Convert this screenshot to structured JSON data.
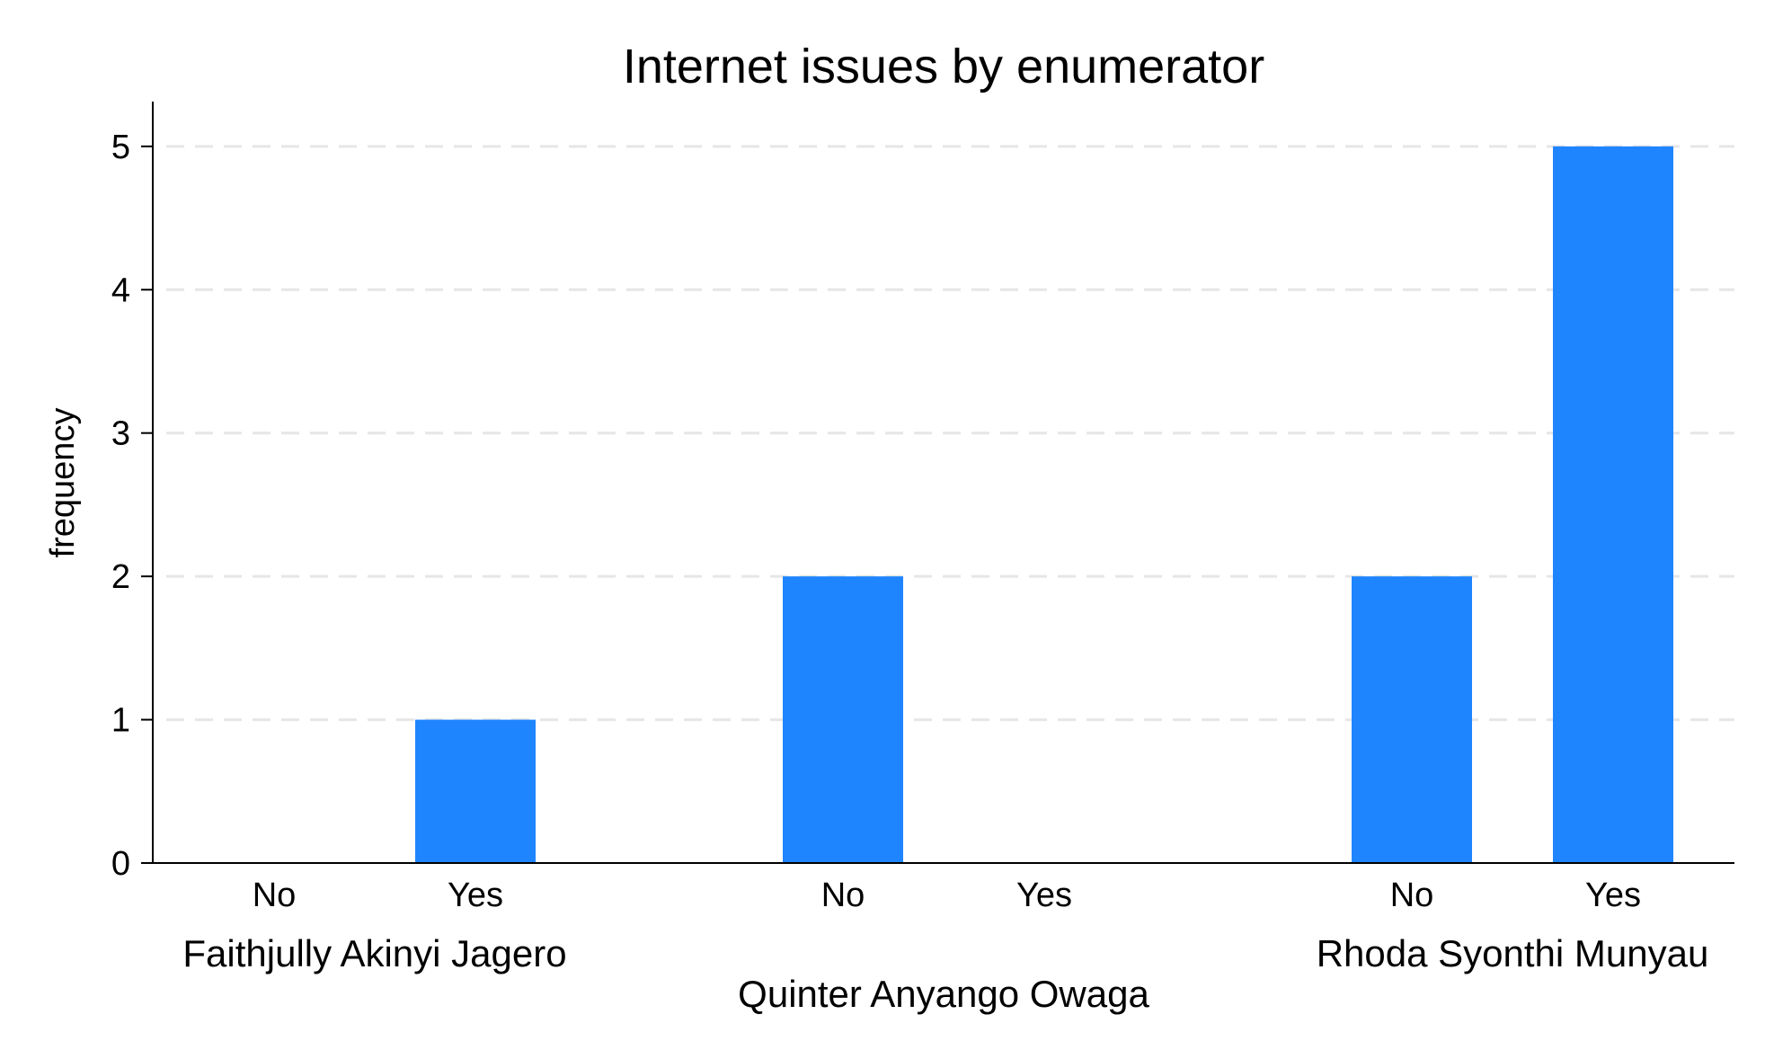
{
  "chart_data": {
    "type": "bar",
    "title": "Internet issues by enumerator",
    "xlabel": "",
    "ylabel": "frequency",
    "ylim": [
      0,
      5.3
    ],
    "yticks": [
      0,
      1,
      2,
      3,
      4,
      5
    ],
    "grid": true,
    "bar_color": "#1f85ff",
    "groups": [
      {
        "name": "Faithjully Akinyi Jagero",
        "categories": [
          "No",
          "Yes"
        ],
        "values": [
          0,
          1
        ]
      },
      {
        "name": "Quinter Anyango Owaga",
        "categories": [
          "No",
          "Yes"
        ],
        "values": [
          2,
          0
        ]
      },
      {
        "name": "Rhoda Syonthi Munyau",
        "categories": [
          "No",
          "Yes"
        ],
        "values": [
          2,
          5
        ]
      }
    ]
  }
}
